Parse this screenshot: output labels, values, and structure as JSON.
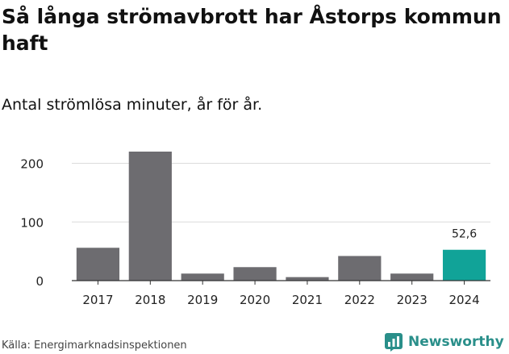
{
  "title": "Så långa strömavbrott har Åstorps kommun haft",
  "subtitle": "Antal strömlösa minuter, år för år.",
  "source": "Källa: Energimarknadsinspektionen",
  "brand": {
    "name": "Newsworthy",
    "icon": "newsworthy-logo-icon",
    "color": "#2a8f8a"
  },
  "chart_data": {
    "type": "bar",
    "categories": [
      "2017",
      "2018",
      "2019",
      "2020",
      "2021",
      "2022",
      "2023",
      "2024"
    ],
    "values": [
      56,
      220,
      12,
      23,
      6,
      42,
      12,
      52.6
    ],
    "ylim": [
      0,
      220
    ],
    "yticks": [
      "0",
      "100",
      "200"
    ],
    "grid": true,
    "data_labels": {
      "2024": "52,6"
    },
    "colors": {
      "default": "#6d6c70",
      "highlight": "#11a398",
      "highlight_category": "2024"
    }
  }
}
